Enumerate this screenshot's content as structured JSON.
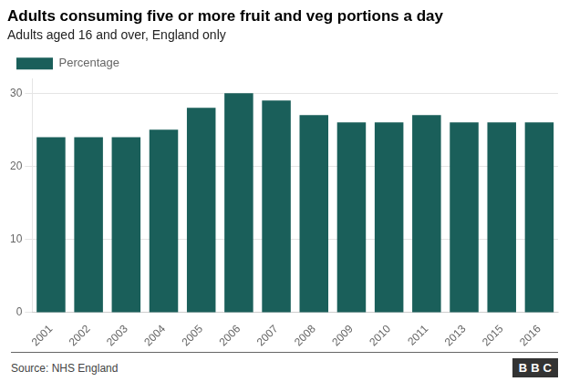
{
  "chart_data": {
    "type": "bar",
    "title": "Adults consuming five or more fruit and veg portions a day",
    "subtitle": "Adults aged 16 and over, England only",
    "categories": [
      "2001",
      "2002",
      "2003",
      "2004",
      "2005",
      "2006",
      "2007",
      "2008",
      "2009",
      "2010",
      "2011",
      "2013",
      "2015",
      "2016"
    ],
    "series": [
      {
        "name": "Percentage",
        "color": "#1a5f5a",
        "values": [
          24,
          24,
          24,
          25,
          28,
          30,
          29,
          27,
          26,
          26,
          27,
          26,
          26,
          26
        ]
      }
    ],
    "ylim": [
      0,
      32
    ],
    "yticks": [
      0,
      10,
      20,
      30
    ],
    "grid": true,
    "legend": "top left",
    "annotations": [
      "Source: NHS England",
      "BBC"
    ]
  }
}
